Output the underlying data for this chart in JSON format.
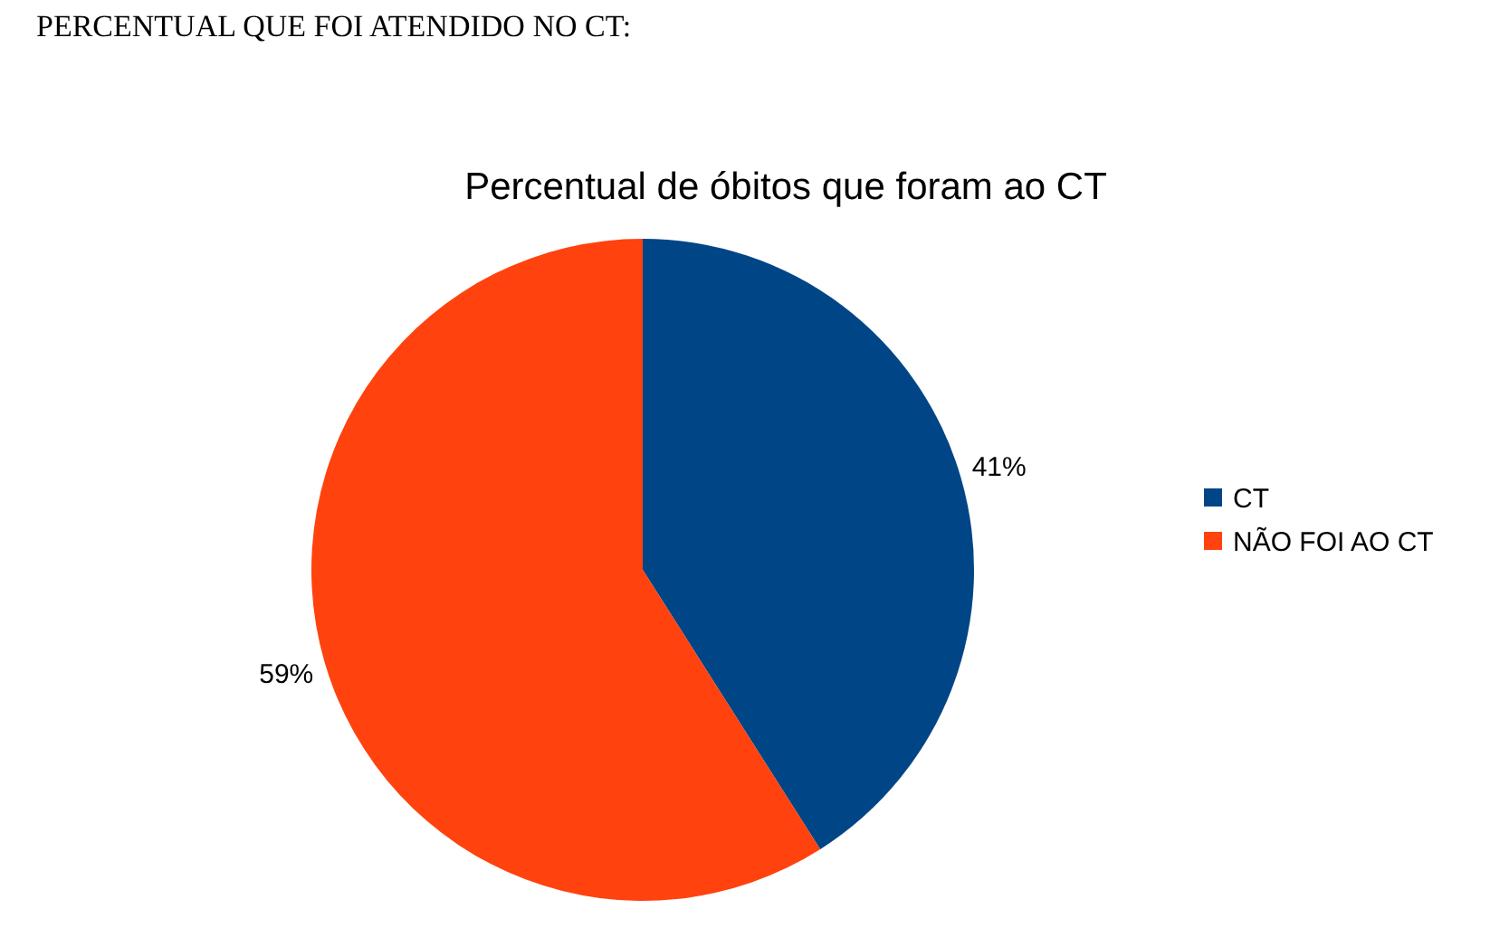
{
  "chart_data": {
    "type": "pie",
    "title": "Percentual de óbitos que foram ao CT",
    "annotations": [
      "PERCENTUAL QUE FOI ATENDIDO NO CT:"
    ],
    "categories": [
      "CT",
      "NÃO FOI AO CT"
    ],
    "values": [
      41,
      59
    ],
    "colors": [
      "#004586",
      "#ff420e"
    ],
    "value_labels": [
      "41%",
      "59%"
    ],
    "legend": "right"
  }
}
